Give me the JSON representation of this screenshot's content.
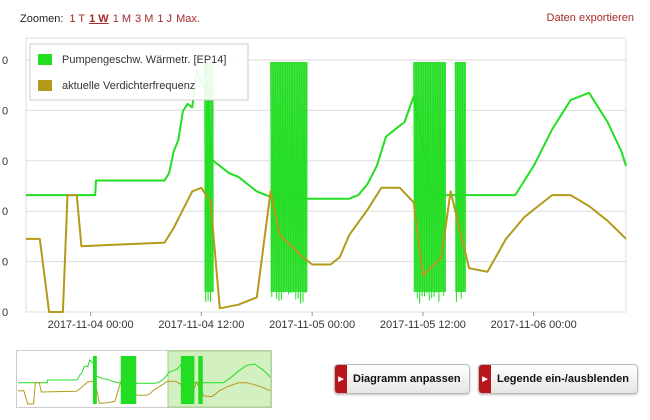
{
  "zoom": {
    "label": "Zoomen:",
    "options": [
      "1 T",
      "1 W",
      "1 M",
      "3 M",
      "1 J",
      "Max."
    ],
    "active": "1 W"
  },
  "export_label": "Daten exportieren",
  "buttons": {
    "fit_label": "Diagramm anpassen",
    "legend_label": "Legende ein-/ausblenden",
    "icon": "play-triangle-icon"
  },
  "colors": {
    "pump": "#22dd22",
    "compressor": "#b59a1a",
    "grid": "#dddddd",
    "accent": "#a52a2a",
    "navigator_window": "#c8eeb0"
  },
  "chart_data": {
    "type": "line",
    "x_axis": {
      "type": "datetime",
      "ticks": [
        "2017-11-04 00:00",
        "2017-11-04 12:00",
        "2017-11-05 00:00",
        "2017-11-05 12:00",
        "2017-11-06 00:00"
      ],
      "range": [
        "2017-11-03 17:00",
        "2017-11-06 10:00"
      ]
    },
    "y_axis": {
      "gridlines": 6,
      "tick_labels": [
        "0",
        "0",
        "0",
        "0",
        "0",
        "0"
      ]
    },
    "legend": {
      "placement": "top-left"
    },
    "series": [
      {
        "name": "Pumpengeschw. Wärmetr. [EP14]",
        "color": "#22dd22",
        "points": [
          [
            "2017-11-03 17:00",
            64
          ],
          [
            "2017-11-04 00:30",
            64
          ],
          [
            "2017-11-04 00:35",
            72
          ],
          [
            "2017-11-04 08:00",
            72
          ],
          [
            "2017-11-04 08:30",
            76
          ],
          [
            "2017-11-04 09:00",
            88
          ],
          [
            "2017-11-04 09:30",
            94
          ],
          [
            "2017-11-04 10:00",
            110
          ],
          [
            "2017-11-04 10:30",
            114
          ],
          [
            "2017-11-04 11:00",
            112
          ],
          [
            "2017-11-04 11:30",
            132
          ],
          [
            "2017-11-04 12:00",
            126
          ],
          [
            "2017-11-04 12:40",
            120
          ],
          [
            "2017-11-04 13:00",
            84
          ],
          [
            "2017-11-04 14:00",
            80
          ],
          [
            "2017-11-04 15:00",
            76
          ],
          [
            "2017-11-04 16:00",
            74
          ],
          [
            "2017-11-04 17:00",
            70
          ],
          [
            "2017-11-04 18:00",
            66
          ],
          [
            "2017-11-04 19:00",
            64
          ],
          [
            "2017-11-04 20:00",
            62
          ],
          [
            "2017-11-04 21:00",
            62
          ],
          [
            "2017-11-04 22:00",
            62
          ],
          [
            "2017-11-04 23:00",
            62
          ],
          [
            "2017-11-05 00:00",
            62
          ],
          [
            "2017-11-05 01:00",
            62
          ],
          [
            "2017-11-05 02:00",
            62
          ],
          [
            "2017-11-05 03:00",
            62
          ],
          [
            "2017-11-05 04:00",
            62
          ],
          [
            "2017-11-05 05:00",
            64
          ],
          [
            "2017-11-05 06:00",
            70
          ],
          [
            "2017-11-05 07:00",
            80
          ],
          [
            "2017-11-05 08:00",
            96
          ],
          [
            "2017-11-05 09:00",
            100
          ],
          [
            "2017-11-05 10:00",
            104
          ],
          [
            "2017-11-05 11:00",
            118
          ],
          [
            "2017-11-05 13:00",
            64
          ],
          [
            "2017-11-05 16:00",
            64
          ],
          [
            "2017-11-05 19:00",
            64
          ],
          [
            "2017-11-05 22:00",
            64
          ],
          [
            "2017-11-06 00:00",
            80
          ],
          [
            "2017-11-06 02:00",
            100
          ],
          [
            "2017-11-06 04:00",
            116
          ],
          [
            "2017-11-06 06:00",
            120
          ],
          [
            "2017-11-06 08:00",
            104
          ],
          [
            "2017-11-06 09:30",
            88
          ],
          [
            "2017-11-06 10:00",
            80
          ]
        ]
      },
      {
        "name": "aktuelle Verdichterfrequenz",
        "color": "#b59a1a",
        "points": [
          [
            "2017-11-03 17:00",
            40
          ],
          [
            "2017-11-03 18:30",
            40
          ],
          [
            "2017-11-03 19:30",
            0
          ],
          [
            "2017-11-03 21:00",
            0
          ],
          [
            "2017-11-03 21:30",
            64
          ],
          [
            "2017-11-03 22:30",
            64
          ],
          [
            "2017-11-03 23:00",
            36
          ],
          [
            "2017-11-04 08:00",
            38
          ],
          [
            "2017-11-04 09:00",
            46
          ],
          [
            "2017-11-04 10:00",
            56
          ],
          [
            "2017-11-04 11:00",
            66
          ],
          [
            "2017-11-04 12:00",
            68
          ],
          [
            "2017-11-04 13:00",
            60
          ],
          [
            "2017-11-04 14:00",
            2
          ],
          [
            "2017-11-04 16:00",
            4
          ],
          [
            "2017-11-04 18:00",
            8
          ],
          [
            "2017-11-04 19:30",
            66
          ],
          [
            "2017-11-04 20:30",
            42
          ],
          [
            "2017-11-04 23:00",
            30
          ],
          [
            "2017-11-05 00:00",
            26
          ],
          [
            "2017-11-05 02:00",
            26
          ],
          [
            "2017-11-05 03:00",
            30
          ],
          [
            "2017-11-05 04:00",
            42
          ],
          [
            "2017-11-05 06:00",
            56
          ],
          [
            "2017-11-05 07:30",
            68
          ],
          [
            "2017-11-05 09:30",
            68
          ],
          [
            "2017-11-05 11:00",
            60
          ],
          [
            "2017-11-05 12:00",
            20
          ],
          [
            "2017-11-05 14:00",
            30
          ],
          [
            "2017-11-05 15:00",
            66
          ],
          [
            "2017-11-05 17:00",
            24
          ],
          [
            "2017-11-05 19:00",
            22
          ],
          [
            "2017-11-05 21:00",
            40
          ],
          [
            "2017-11-05 23:00",
            52
          ],
          [
            "2017-11-06 01:00",
            60
          ],
          [
            "2017-11-06 02:00",
            64
          ],
          [
            "2017-11-06 04:00",
            64
          ],
          [
            "2017-11-06 06:00",
            58
          ],
          [
            "2017-11-06 08:00",
            50
          ],
          [
            "2017-11-06 10:00",
            40
          ]
        ]
      }
    ],
    "dense_oscillation_bands": [
      {
        "series": 0,
        "start": "2017-11-04 12:20",
        "end": "2017-11-04 13:20"
      },
      {
        "series": 0,
        "start": "2017-11-04 19:30",
        "end": "2017-11-04 23:30"
      },
      {
        "series": 0,
        "start": "2017-11-05 11:00",
        "end": "2017-11-05 14:30"
      },
      {
        "series": 0,
        "start": "2017-11-05 15:30",
        "end": "2017-11-05 16:40"
      }
    ]
  }
}
